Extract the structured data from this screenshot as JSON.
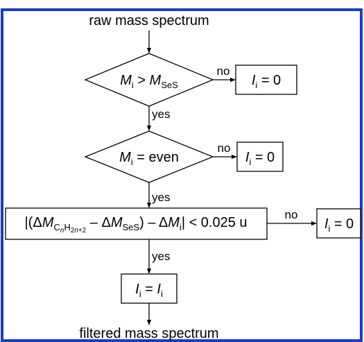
{
  "start": "raw mass spectrum",
  "end": "filtered mass spectrum",
  "steps": [
    {
      "condition": [
        "M",
        "i",
        " > ",
        "M",
        "SeS"
      ],
      "no_label": "no",
      "no_result": [
        "I",
        "i",
        " = 0"
      ],
      "yes_label": "yes"
    },
    {
      "condition": [
        "M",
        "i",
        " = even"
      ],
      "no_label": "no",
      "no_result": [
        "I",
        "i",
        " = 0"
      ],
      "yes_label": "yes"
    },
    {
      "condition": [
        "|(Δ",
        "M",
        "C",
        "n",
        "H",
        "2",
        "n",
        "+2",
        " – Δ",
        "M",
        "SeS",
        ") – Δ",
        "M",
        "i",
        "| < 0.025 u"
      ],
      "no_label": "no",
      "no_result": [
        "I",
        "i",
        " = 0"
      ],
      "yes_label": "yes"
    }
  ],
  "final": [
    "I",
    "i",
    " = ",
    "I",
    "i"
  ]
}
